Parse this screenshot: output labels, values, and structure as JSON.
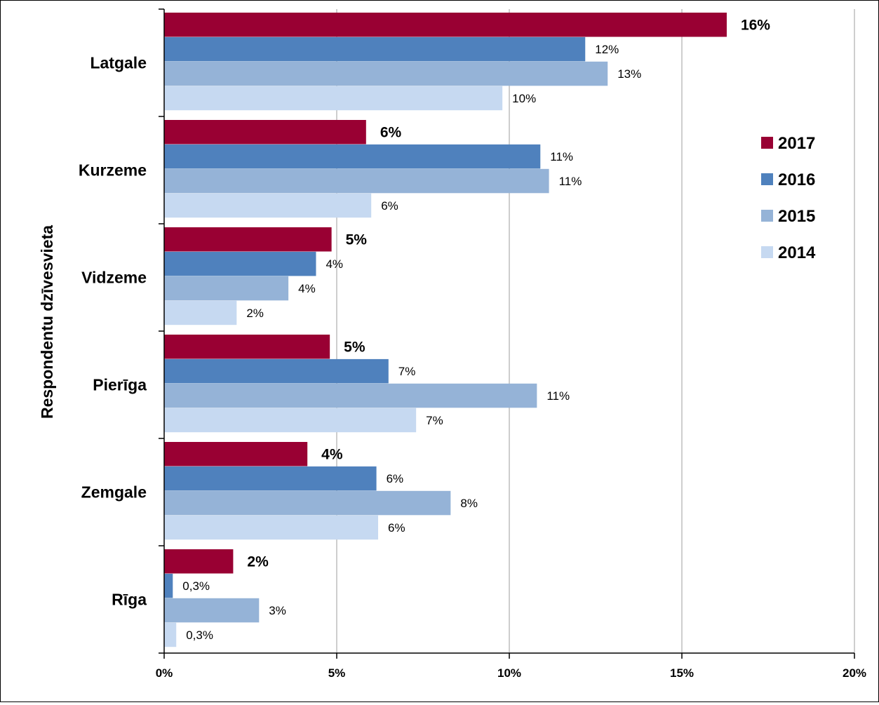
{
  "chart_data": {
    "type": "bar",
    "orientation": "horizontal",
    "categories": [
      "Latgale",
      "Kurzeme",
      "Vidzeme",
      "Pierīga",
      "Zemgale",
      "Rīga"
    ],
    "series": [
      {
        "name": "2017",
        "color": "#990033",
        "values": [
          16.3,
          5.85,
          4.85,
          4.8,
          4.15,
          2.0
        ],
        "labels": [
          "16%",
          "6%",
          "5%",
          "5%",
          "4%",
          "2%"
        ],
        "label_style": "bold"
      },
      {
        "name": "2016",
        "color": "#4f81bd",
        "values": [
          12.2,
          10.9,
          4.4,
          6.5,
          6.15,
          0.25
        ],
        "labels": [
          "12%",
          "11%",
          "4%",
          "7%",
          "6%",
          "0,3%"
        ]
      },
      {
        "name": "2015",
        "color": "#95b3d7",
        "values": [
          12.85,
          11.15,
          3.6,
          10.8,
          8.3,
          2.75
        ],
        "labels": [
          "13%",
          "11%",
          "4%",
          "11%",
          "8%",
          "3%"
        ]
      },
      {
        "name": "2014",
        "color": "#c6d9f1",
        "values": [
          9.8,
          6.0,
          2.1,
          7.3,
          6.2,
          0.35
        ],
        "labels": [
          "10%",
          "6%",
          "2%",
          "7%",
          "6%",
          "0,3%"
        ]
      }
    ],
    "xlim": [
      0,
      20
    ],
    "x_ticks": [
      0,
      5,
      10,
      15,
      20
    ],
    "x_tick_labels": [
      "0%",
      "5%",
      "10%",
      "15%",
      "20%"
    ],
    "ylabel": "Respondentu dzīvesvieta",
    "xlabel": "",
    "title": "",
    "grid": "vertical",
    "legend": "right"
  }
}
